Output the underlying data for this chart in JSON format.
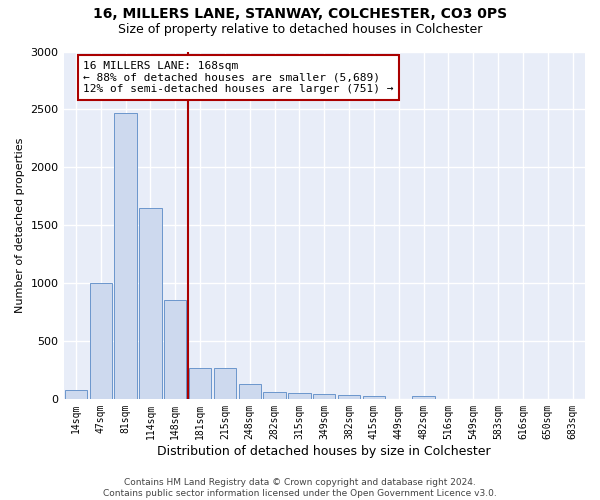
{
  "title": "16, MILLERS LANE, STANWAY, COLCHESTER, CO3 0PS",
  "subtitle": "Size of property relative to detached houses in Colchester",
  "xlabel": "Distribution of detached houses by size in Colchester",
  "ylabel": "Number of detached properties",
  "categories": [
    "14sqm",
    "47sqm",
    "81sqm",
    "114sqm",
    "148sqm",
    "181sqm",
    "215sqm",
    "248sqm",
    "282sqm",
    "315sqm",
    "349sqm",
    "382sqm",
    "415sqm",
    "449sqm",
    "482sqm",
    "516sqm",
    "549sqm",
    "583sqm",
    "616sqm",
    "650sqm",
    "683sqm"
  ],
  "values": [
    75,
    1000,
    2470,
    1650,
    850,
    270,
    270,
    130,
    55,
    50,
    45,
    35,
    25,
    0,
    25,
    0,
    0,
    0,
    0,
    0,
    0
  ],
  "bar_color": "#cdd9ee",
  "bar_edge_color": "#6b96cc",
  "vline_x": 4.5,
  "vline_color": "#aa0000",
  "annotation_text": "16 MILLERS LANE: 168sqm\n← 88% of detached houses are smaller (5,689)\n12% of semi-detached houses are larger (751) →",
  "annotation_box_color": "white",
  "annotation_box_edge_color": "#aa0000",
  "ylim": [
    0,
    3000
  ],
  "yticks": [
    0,
    500,
    1000,
    1500,
    2000,
    2500,
    3000
  ],
  "background_color": "#e8edf8",
  "grid_color": "white",
  "footer": "Contains HM Land Registry data © Crown copyright and database right 2024.\nContains public sector information licensed under the Open Government Licence v3.0.",
  "title_fontsize": 10,
  "subtitle_fontsize": 9,
  "annotation_fontsize": 8,
  "footer_fontsize": 6.5,
  "ylabel_fontsize": 8,
  "xlabel_fontsize": 9,
  "xtick_fontsize": 7,
  "ytick_fontsize": 8
}
